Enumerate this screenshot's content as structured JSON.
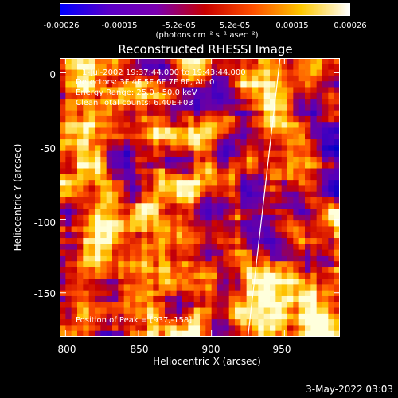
{
  "colorbar": {
    "ticks": [
      "-0.00026",
      "-0.00015",
      "-5.2e-05",
      "5.2e-05",
      "0.00015",
      "0.00026"
    ],
    "tick_values": [
      -0.00026,
      -0.00015,
      -5.2e-05,
      5.2e-05,
      0.00015,
      0.00026
    ],
    "range": [
      -0.00026,
      0.00026
    ],
    "unit_label": "(photons cm⁻² s⁻¹ asec⁻²)",
    "colors": [
      "#0000ff",
      "#5a00c8",
      "#7b00b0",
      "#c80000",
      "#ff5000",
      "#ffc800",
      "#ffffff"
    ]
  },
  "chart_data": {
    "type": "heatmap",
    "title": "Reconstructed RHESSI Image",
    "xlabel": "Heliocentric X (arcsec)",
    "ylabel": "Heliocentric Y (arcsec)",
    "xlim": [
      796,
      988
    ],
    "ylim": [
      -180,
      10
    ],
    "x_ticks": [
      800,
      850,
      900,
      950
    ],
    "y_ticks": [
      0,
      -50,
      -100,
      -150
    ],
    "annotations": {
      "time_range": "1-Jul-2002 19:37:44.000 to 19:43:44.000",
      "detectors": "Detectors: 3F 4F 5F 6F 7F 8F, Att 0",
      "energy_range": "Energy Range: 25.0 - 50.0 keV",
      "method": "Clean    Total counts: 6.40E+03",
      "peak": "Position of Peak = [937,-158]"
    },
    "peak": [
      937,
      -158
    ],
    "limb_line": [
      [
        947,
        10
      ],
      [
        925,
        -180
      ]
    ]
  },
  "footer": {
    "date": "3-May-2022 03:03"
  }
}
